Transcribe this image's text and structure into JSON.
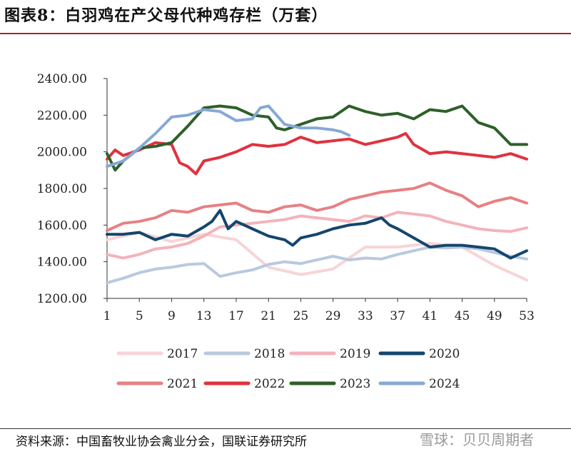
{
  "header": {
    "title": "图表8：白羽鸡在产父母代种鸡存栏（万套）"
  },
  "footer": {
    "source": "资料来源：中国畜牧业协会禽业分会，国联证券研究所",
    "watermark": "雪球：贝贝周期者"
  },
  "chart_data": {
    "type": "line",
    "title": "",
    "xlabel": "",
    "ylabel": "",
    "xlim": [
      1,
      53
    ],
    "ylim": [
      1200,
      2400
    ],
    "yticks": [
      "1200.00",
      "1400.00",
      "1600.00",
      "1800.00",
      "2000.00",
      "2200.00",
      "2400.00"
    ],
    "xticks": [
      "1",
      "5",
      "9",
      "13",
      "17",
      "21",
      "25",
      "29",
      "33",
      "37",
      "41",
      "45",
      "49",
      "53"
    ],
    "grid": false,
    "legend_position": "bottom",
    "series": [
      {
        "name": "2017",
        "color": "#f7d4d7",
        "x": [
          1,
          5,
          9,
          13,
          17,
          21,
          25,
          29,
          33,
          37,
          41,
          45,
          49,
          53
        ],
        "y": [
          1520,
          1560,
          1510,
          1550,
          1520,
          1370,
          1330,
          1360,
          1480,
          1480,
          1500,
          1480,
          1380,
          1300
        ]
      },
      {
        "name": "2018",
        "color": "#b9c9df",
        "x": [
          1,
          3,
          5,
          7,
          9,
          11,
          13,
          15,
          17,
          19,
          21,
          23,
          25,
          27,
          29,
          31,
          33,
          35,
          37,
          39,
          41,
          43,
          45,
          47,
          49,
          51,
          53
        ],
        "y": [
          1285,
          1310,
          1340,
          1360,
          1370,
          1385,
          1390,
          1320,
          1340,
          1355,
          1385,
          1400,
          1390,
          1410,
          1430,
          1410,
          1420,
          1415,
          1440,
          1460,
          1480,
          1475,
          1480,
          1470,
          1450,
          1430,
          1415
        ]
      },
      {
        "name": "2019",
        "color": "#f3b3ba",
        "x": [
          1,
          3,
          5,
          7,
          9,
          11,
          13,
          15,
          17,
          19,
          21,
          23,
          25,
          27,
          29,
          31,
          33,
          35,
          37,
          39,
          41,
          43,
          45,
          47,
          49,
          51,
          53
        ],
        "y": [
          1440,
          1420,
          1440,
          1470,
          1480,
          1500,
          1540,
          1590,
          1600,
          1610,
          1620,
          1630,
          1650,
          1640,
          1630,
          1620,
          1650,
          1640,
          1670,
          1660,
          1650,
          1620,
          1600,
          1580,
          1570,
          1565,
          1585
        ]
      },
      {
        "name": "2020",
        "color": "#14466e",
        "x": [
          1,
          3,
          5,
          7,
          9,
          11,
          13,
          14,
          15,
          16,
          17,
          19,
          21,
          23,
          24,
          25,
          27,
          29,
          31,
          33,
          35,
          36,
          37,
          39,
          41,
          43,
          45,
          47,
          49,
          51,
          53
        ],
        "y": [
          1550,
          1550,
          1560,
          1520,
          1550,
          1540,
          1590,
          1620,
          1680,
          1580,
          1620,
          1580,
          1540,
          1520,
          1490,
          1530,
          1550,
          1580,
          1600,
          1610,
          1640,
          1600,
          1580,
          1530,
          1480,
          1490,
          1490,
          1480,
          1470,
          1420,
          1460
        ]
      },
      {
        "name": "2021",
        "color": "#e78084",
        "x": [
          1,
          3,
          5,
          7,
          9,
          11,
          13,
          15,
          17,
          19,
          21,
          23,
          25,
          27,
          29,
          31,
          33,
          35,
          37,
          39,
          41,
          43,
          45,
          47,
          49,
          51,
          53
        ],
        "y": [
          1570,
          1610,
          1620,
          1640,
          1680,
          1670,
          1700,
          1710,
          1720,
          1680,
          1670,
          1700,
          1710,
          1680,
          1700,
          1740,
          1760,
          1780,
          1790,
          1800,
          1830,
          1790,
          1760,
          1700,
          1730,
          1750,
          1720
        ]
      },
      {
        "name": "2022",
        "color": "#e0323e",
        "x": [
          1,
          2,
          3,
          5,
          7,
          9,
          10,
          11,
          12,
          13,
          15,
          17,
          19,
          21,
          23,
          25,
          27,
          29,
          31,
          33,
          35,
          37,
          38,
          39,
          41,
          43,
          45,
          47,
          49,
          51,
          53
        ],
        "y": [
          1960,
          2010,
          1980,
          2010,
          2050,
          2040,
          1940,
          1920,
          1880,
          1950,
          1970,
          2000,
          2040,
          2030,
          2040,
          2080,
          2050,
          2060,
          2070,
          2040,
          2060,
          2080,
          2100,
          2040,
          1990,
          2000,
          1990,
          1980,
          1970,
          1990,
          1960
        ]
      },
      {
        "name": "2023",
        "color": "#2f5f2a",
        "x": [
          1,
          2,
          3,
          5,
          7,
          9,
          11,
          13,
          15,
          17,
          19,
          21,
          22,
          23,
          25,
          27,
          29,
          31,
          33,
          35,
          37,
          39,
          41,
          43,
          45,
          47,
          49,
          51,
          53
        ],
        "y": [
          1990,
          1900,
          1950,
          2020,
          2030,
          2050,
          2140,
          2240,
          2250,
          2240,
          2200,
          2190,
          2130,
          2120,
          2150,
          2180,
          2190,
          2250,
          2220,
          2200,
          2210,
          2180,
          2230,
          2220,
          2250,
          2160,
          2130,
          2040,
          2040
        ]
      },
      {
        "name": "2024",
        "color": "#86a9d5",
        "x": [
          1,
          3,
          5,
          7,
          9,
          11,
          13,
          15,
          17,
          19,
          20,
          21,
          23,
          25,
          27,
          29,
          30,
          31
        ],
        "y": [
          1920,
          1950,
          2020,
          2100,
          2190,
          2200,
          2230,
          2220,
          2170,
          2180,
          2240,
          2250,
          2150,
          2130,
          2130,
          2120,
          2110,
          2090
        ]
      }
    ]
  }
}
